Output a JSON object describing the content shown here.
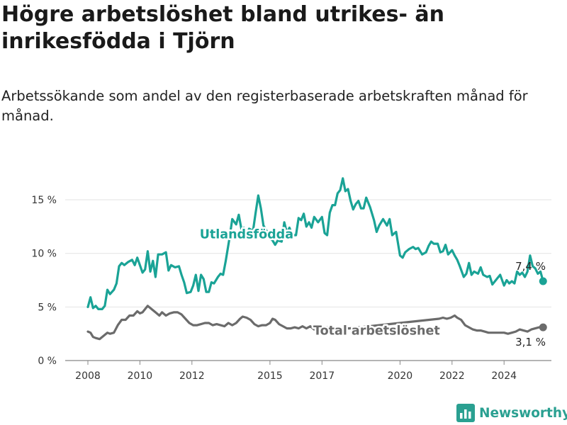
{
  "header": {
    "title": "Högre arbetslöshet bland utrikes- än inrikesfödda i Tjörn",
    "subtitle": "Arbetssökande som andel av den registerbaserade arbetskraften månad för månad."
  },
  "brand": {
    "name": "Newsworthy",
    "icon": "newsworthy-logo-icon",
    "color": "#2aa091"
  },
  "chart_data": {
    "type": "line",
    "xlim": [
      2007.5,
      2025.8
    ],
    "ylim": [
      0,
      17.5
    ],
    "x_ticks": [
      {
        "value": 2008,
        "label": "2008"
      },
      {
        "value": 2010,
        "label": "2010"
      },
      {
        "value": 2012,
        "label": "2012"
      },
      {
        "value": 2015,
        "label": "2015"
      },
      {
        "value": 2017,
        "label": "2017"
      },
      {
        "value": 2020,
        "label": "2020"
      },
      {
        "value": 2022,
        "label": "2022"
      },
      {
        "value": 2024,
        "label": "2024"
      }
    ],
    "y_ticks": [
      {
        "value": 0,
        "label": "0 %"
      },
      {
        "value": 5,
        "label": "5 %"
      },
      {
        "value": 10,
        "label": "10 %"
      },
      {
        "value": 15,
        "label": "15 %"
      }
    ],
    "grid": "horizontal",
    "series": [
      {
        "name": "Utlandsfödda",
        "color": "#1aa396",
        "end_label": "7,4 %",
        "points": [
          [
            2008.0,
            5.0
          ],
          [
            2008.1,
            5.9
          ],
          [
            2008.2,
            4.9
          ],
          [
            2008.3,
            5.1
          ],
          [
            2008.4,
            4.8
          ],
          [
            2008.55,
            4.8
          ],
          [
            2008.65,
            5.1
          ],
          [
            2008.75,
            6.6
          ],
          [
            2008.85,
            6.2
          ],
          [
            2009.0,
            6.6
          ],
          [
            2009.1,
            7.2
          ],
          [
            2009.2,
            8.8
          ],
          [
            2009.3,
            9.1
          ],
          [
            2009.4,
            8.9
          ],
          [
            2009.55,
            9.2
          ],
          [
            2009.7,
            9.4
          ],
          [
            2009.8,
            8.9
          ],
          [
            2009.9,
            9.6
          ],
          [
            2010.0,
            8.9
          ],
          [
            2010.1,
            8.2
          ],
          [
            2010.2,
            8.5
          ],
          [
            2010.3,
            10.2
          ],
          [
            2010.4,
            8.3
          ],
          [
            2010.5,
            9.3
          ],
          [
            2010.6,
            7.8
          ],
          [
            2010.7,
            9.9
          ],
          [
            2010.85,
            9.9
          ],
          [
            2011.0,
            10.1
          ],
          [
            2011.1,
            8.4
          ],
          [
            2011.2,
            8.9
          ],
          [
            2011.35,
            8.7
          ],
          [
            2011.5,
            8.8
          ],
          [
            2011.6,
            8.0
          ],
          [
            2011.7,
            7.3
          ],
          [
            2011.8,
            6.3
          ],
          [
            2011.95,
            6.4
          ],
          [
            2012.05,
            7.0
          ],
          [
            2012.15,
            8.0
          ],
          [
            2012.25,
            6.5
          ],
          [
            2012.35,
            8.0
          ],
          [
            2012.45,
            7.6
          ],
          [
            2012.55,
            6.4
          ],
          [
            2012.65,
            6.4
          ],
          [
            2012.75,
            7.3
          ],
          [
            2012.85,
            7.2
          ],
          [
            2013.0,
            7.8
          ],
          [
            2013.1,
            8.1
          ],
          [
            2013.2,
            8.0
          ],
          [
            2013.3,
            9.3
          ],
          [
            2013.45,
            11.5
          ],
          [
            2013.55,
            13.2
          ],
          [
            2013.7,
            12.7
          ],
          [
            2013.8,
            13.6
          ],
          [
            2013.9,
            12.3
          ],
          [
            2014.0,
            12.4
          ],
          [
            2014.1,
            11.6
          ],
          [
            2014.2,
            12.3
          ],
          [
            2014.35,
            12.1
          ],
          [
            2014.45,
            13.8
          ],
          [
            2014.55,
            15.4
          ],
          [
            2014.65,
            14.2
          ],
          [
            2014.75,
            12.6
          ],
          [
            2014.85,
            12.2
          ],
          [
            2015.0,
            11.4
          ],
          [
            2015.1,
            11.2
          ],
          [
            2015.2,
            10.8
          ],
          [
            2015.3,
            11.2
          ],
          [
            2015.45,
            11.1
          ],
          [
            2015.55,
            12.9
          ],
          [
            2015.65,
            11.9
          ],
          [
            2015.75,
            12.4
          ],
          [
            2015.85,
            11.7
          ],
          [
            2016.0,
            11.7
          ],
          [
            2016.1,
            13.3
          ],
          [
            2016.2,
            13.1
          ],
          [
            2016.3,
            13.7
          ],
          [
            2016.4,
            12.5
          ],
          [
            2016.5,
            12.9
          ],
          [
            2016.6,
            12.4
          ],
          [
            2016.7,
            13.4
          ],
          [
            2016.85,
            12.9
          ],
          [
            2017.0,
            13.4
          ],
          [
            2017.1,
            11.9
          ],
          [
            2017.2,
            11.7
          ],
          [
            2017.3,
            13.8
          ],
          [
            2017.4,
            14.5
          ],
          [
            2017.5,
            14.5
          ],
          [
            2017.6,
            15.6
          ],
          [
            2017.7,
            15.9
          ],
          [
            2017.8,
            17.0
          ],
          [
            2017.9,
            15.8
          ],
          [
            2018.0,
            16.0
          ],
          [
            2018.1,
            14.9
          ],
          [
            2018.2,
            14.1
          ],
          [
            2018.3,
            14.6
          ],
          [
            2018.4,
            14.9
          ],
          [
            2018.5,
            14.2
          ],
          [
            2018.6,
            14.2
          ],
          [
            2018.7,
            15.2
          ],
          [
            2018.85,
            14.3
          ],
          [
            2019.0,
            13.1
          ],
          [
            2019.1,
            12.0
          ],
          [
            2019.2,
            12.6
          ],
          [
            2019.35,
            13.2
          ],
          [
            2019.5,
            12.6
          ],
          [
            2019.6,
            13.2
          ],
          [
            2019.7,
            11.7
          ],
          [
            2019.85,
            12.0
          ],
          [
            2020.0,
            9.8
          ],
          [
            2020.1,
            9.6
          ],
          [
            2020.2,
            10.1
          ],
          [
            2020.35,
            10.4
          ],
          [
            2020.5,
            10.6
          ],
          [
            2020.6,
            10.4
          ],
          [
            2020.7,
            10.5
          ],
          [
            2020.85,
            9.9
          ],
          [
            2021.0,
            10.1
          ],
          [
            2021.1,
            10.7
          ],
          [
            2021.2,
            11.1
          ],
          [
            2021.3,
            10.9
          ],
          [
            2021.45,
            10.9
          ],
          [
            2021.55,
            10.1
          ],
          [
            2021.65,
            10.2
          ],
          [
            2021.75,
            10.8
          ],
          [
            2021.85,
            9.9
          ],
          [
            2022.0,
            10.3
          ],
          [
            2022.1,
            9.8
          ],
          [
            2022.2,
            9.4
          ],
          [
            2022.3,
            8.8
          ],
          [
            2022.45,
            7.8
          ],
          [
            2022.55,
            8.1
          ],
          [
            2022.65,
            9.1
          ],
          [
            2022.75,
            8.0
          ],
          [
            2022.85,
            8.3
          ],
          [
            2023.0,
            8.1
          ],
          [
            2023.1,
            8.7
          ],
          [
            2023.2,
            8.0
          ],
          [
            2023.35,
            7.8
          ],
          [
            2023.45,
            7.9
          ],
          [
            2023.55,
            7.1
          ],
          [
            2023.65,
            7.4
          ],
          [
            2023.75,
            7.7
          ],
          [
            2023.85,
            8.0
          ],
          [
            2024.0,
            7.0
          ],
          [
            2024.1,
            7.5
          ],
          [
            2024.2,
            7.2
          ],
          [
            2024.3,
            7.4
          ],
          [
            2024.4,
            7.2
          ],
          [
            2024.5,
            8.3
          ],
          [
            2024.6,
            8.0
          ],
          [
            2024.7,
            8.2
          ],
          [
            2024.8,
            7.8
          ],
          [
            2024.9,
            8.3
          ],
          [
            2025.0,
            9.8
          ],
          [
            2025.1,
            8.8
          ],
          [
            2025.2,
            8.6
          ],
          [
            2025.3,
            8.1
          ],
          [
            2025.4,
            8.3
          ],
          [
            2025.5,
            7.4
          ]
        ]
      },
      {
        "name": "Total arbetslöshet",
        "color": "#6b6b6b",
        "end_label": "3,1 %",
        "points": [
          [
            2008.0,
            2.7
          ],
          [
            2008.1,
            2.6
          ],
          [
            2008.2,
            2.2
          ],
          [
            2008.3,
            2.1
          ],
          [
            2008.45,
            2.0
          ],
          [
            2008.6,
            2.3
          ],
          [
            2008.75,
            2.6
          ],
          [
            2008.85,
            2.5
          ],
          [
            2009.0,
            2.6
          ],
          [
            2009.15,
            3.3
          ],
          [
            2009.3,
            3.8
          ],
          [
            2009.45,
            3.8
          ],
          [
            2009.6,
            4.2
          ],
          [
            2009.75,
            4.2
          ],
          [
            2009.9,
            4.6
          ],
          [
            2010.0,
            4.4
          ],
          [
            2010.1,
            4.5
          ],
          [
            2010.2,
            4.8
          ],
          [
            2010.3,
            5.1
          ],
          [
            2010.45,
            4.8
          ],
          [
            2010.6,
            4.5
          ],
          [
            2010.75,
            4.2
          ],
          [
            2010.85,
            4.5
          ],
          [
            2011.0,
            4.2
          ],
          [
            2011.15,
            4.4
          ],
          [
            2011.3,
            4.5
          ],
          [
            2011.45,
            4.5
          ],
          [
            2011.6,
            4.3
          ],
          [
            2011.75,
            3.9
          ],
          [
            2011.9,
            3.5
          ],
          [
            2012.05,
            3.3
          ],
          [
            2012.2,
            3.3
          ],
          [
            2012.35,
            3.4
          ],
          [
            2012.5,
            3.5
          ],
          [
            2012.65,
            3.5
          ],
          [
            2012.8,
            3.3
          ],
          [
            2012.95,
            3.4
          ],
          [
            2013.1,
            3.3
          ],
          [
            2013.25,
            3.2
          ],
          [
            2013.4,
            3.5
          ],
          [
            2013.55,
            3.3
          ],
          [
            2013.7,
            3.5
          ],
          [
            2013.85,
            3.9
          ],
          [
            2013.95,
            4.1
          ],
          [
            2014.1,
            4.0
          ],
          [
            2014.25,
            3.8
          ],
          [
            2014.4,
            3.4
          ],
          [
            2014.55,
            3.2
          ],
          [
            2014.7,
            3.3
          ],
          [
            2014.85,
            3.3
          ],
          [
            2015.0,
            3.5
          ],
          [
            2015.1,
            3.9
          ],
          [
            2015.2,
            3.8
          ],
          [
            2015.35,
            3.4
          ],
          [
            2015.5,
            3.2
          ],
          [
            2015.65,
            3.0
          ],
          [
            2015.8,
            3.0
          ],
          [
            2015.95,
            3.1
          ],
          [
            2016.1,
            3.0
          ],
          [
            2016.25,
            3.2
          ],
          [
            2016.4,
            3.0
          ],
          [
            2016.55,
            3.2
          ],
          [
            2016.7,
            2.9
          ],
          [
            2016.85,
            3.0
          ],
          [
            2017.0,
            3.1
          ],
          [
            2017.15,
            3.1
          ],
          [
            2017.3,
            3.1
          ],
          [
            2017.45,
            2.9
          ],
          [
            2017.6,
            2.8
          ],
          [
            2017.75,
            2.8
          ],
          [
            2017.9,
            3.0
          ],
          [
            2018.05,
            3.0
          ],
          [
            2021.5,
            3.9
          ],
          [
            2021.65,
            4.0
          ],
          [
            2021.8,
            3.9
          ],
          [
            2021.95,
            4.0
          ],
          [
            2022.1,
            4.2
          ],
          [
            2022.2,
            4.0
          ],
          [
            2022.35,
            3.8
          ],
          [
            2022.5,
            3.3
          ],
          [
            2022.65,
            3.1
          ],
          [
            2022.8,
            2.9
          ],
          [
            2022.95,
            2.8
          ],
          [
            2023.1,
            2.8
          ],
          [
            2023.25,
            2.7
          ],
          [
            2023.4,
            2.6
          ],
          [
            2023.55,
            2.6
          ],
          [
            2023.7,
            2.6
          ],
          [
            2023.85,
            2.6
          ],
          [
            2024.0,
            2.6
          ],
          [
            2024.15,
            2.5
          ],
          [
            2024.3,
            2.6
          ],
          [
            2024.45,
            2.7
          ],
          [
            2024.6,
            2.9
          ],
          [
            2024.75,
            2.8
          ],
          [
            2024.9,
            2.7
          ],
          [
            2025.05,
            2.9
          ],
          [
            2025.2,
            3.0
          ],
          [
            2025.35,
            3.1
          ],
          [
            2025.5,
            3.1
          ]
        ]
      }
    ],
    "annotations": [
      {
        "text": "Utlandsfödda",
        "series": 0,
        "x": 2014.1,
        "y": 11.8
      },
      {
        "text": "Total arbetslöshet",
        "series": 1,
        "x": 2019.1,
        "y": 2.8
      }
    ]
  }
}
